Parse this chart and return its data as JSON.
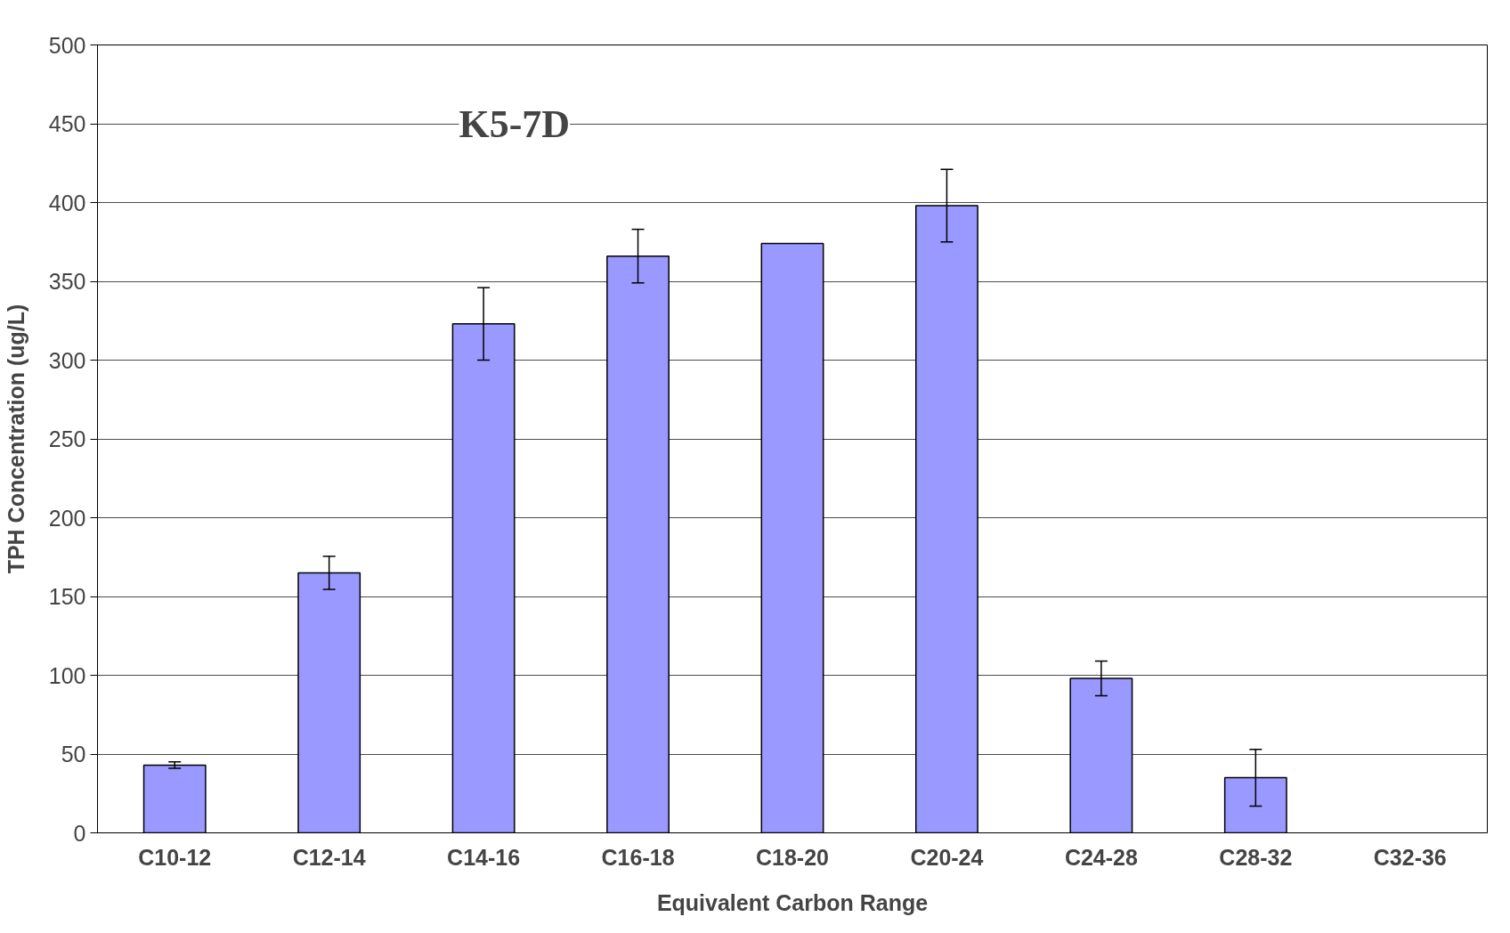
{
  "chart_data": {
    "type": "bar",
    "title": "K5-7D",
    "xlabel": "Equivalent Carbon Range",
    "ylabel": "TPH Concentration (ug/L)",
    "categories": [
      "C10-12",
      "C12-14",
      "C14-16",
      "C16-18",
      "C18-20",
      "C20-24",
      "C24-28",
      "C28-32",
      "C32-36"
    ],
    "values": [
      43,
      165,
      323,
      366,
      374,
      398,
      98,
      35,
      0
    ],
    "errors": [
      2,
      10.5,
      23,
      17,
      null,
      23,
      11,
      18,
      null
    ],
    "color": "#9999ff",
    "ylim": [
      0,
      500
    ],
    "yticks": [
      0,
      50,
      100,
      150,
      200,
      250,
      300,
      350,
      400,
      450,
      500
    ],
    "grid": "y"
  }
}
